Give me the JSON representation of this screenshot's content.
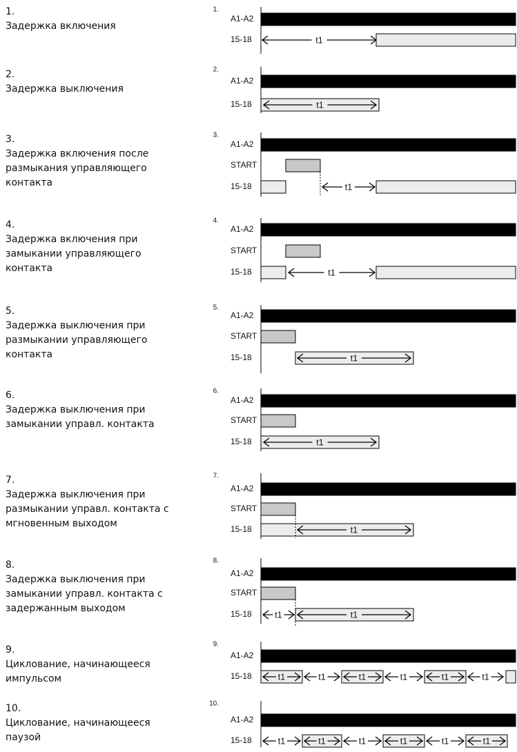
{
  "modes": [
    {
      "number": "1.",
      "desc": [
        "Задержка включения"
      ],
      "diagram_number": "1.",
      "signals": [
        "A1-A2",
        "15-18"
      ]
    },
    {
      "number": "2.",
      "desc": [
        "Задержка выключения"
      ],
      "diagram_number": "2.",
      "signals": [
        "A1-A2",
        "15-18"
      ]
    },
    {
      "number": "3.",
      "desc": [
        "Задержка включения после",
        "размыкания управляющего",
        "контакта"
      ],
      "diagram_number": "3.",
      "signals": [
        "A1-A2",
        "START",
        "15-18"
      ]
    },
    {
      "number": "4.",
      "desc": [
        "Задержка включения при",
        "замыкании управляющего",
        "контакта"
      ],
      "diagram_number": "4.",
      "signals": [
        "A1-A2",
        "START",
        "15-18"
      ]
    },
    {
      "number": "5.",
      "desc": [
        "Задержка выключения при",
        "размыкании управляющего",
        "контакта"
      ],
      "diagram_number": "5.",
      "signals": [
        "A1-A2",
        "START",
        "15-18"
      ]
    },
    {
      "number": "6.",
      "desc": [
        "Задержка выключения при",
        "замыкании управл. контакта"
      ],
      "diagram_number": "6.",
      "signals": [
        "A1-A2",
        "START",
        "15-18"
      ]
    },
    {
      "number": "7.",
      "desc": [
        "Задержка выключения при",
        "размыкании управл. контакта с",
        "мгновенным выходом"
      ],
      "diagram_number": "7.",
      "signals": [
        "A1-A2",
        "START",
        "15-18"
      ]
    },
    {
      "number": "8.",
      "desc": [
        "Задержка выключения при",
        "замыкании управл. контакта с",
        "задержанным выходом"
      ],
      "diagram_number": "8.",
      "signals": [
        "A1-A2",
        "START",
        "15-18"
      ]
    },
    {
      "number": "9.",
      "desc": [
        "Циклование, начинающееся",
        "импульсом"
      ],
      "diagram_number": "9.",
      "signals": [
        "A1-A2",
        "15-18"
      ]
    },
    {
      "number": "10.",
      "desc": [
        "Циклование, начинающееся",
        "паузой"
      ],
      "diagram_number": "10.",
      "signals": [
        "A1-A2",
        "15-18"
      ]
    }
  ],
  "time_label": "t1",
  "colors": {
    "supply_bar": "#000000",
    "start_bar": "#c8c8c8",
    "output_bar": "#ececec",
    "line": "#000000"
  }
}
